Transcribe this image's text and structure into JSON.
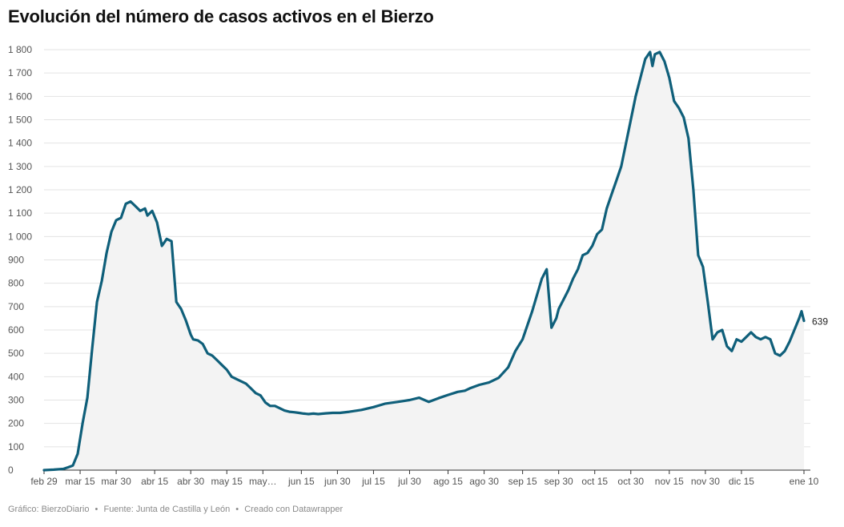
{
  "title": "Evolución del número de casos activos en el Bierzo",
  "footer": {
    "chart_credit": "Gráfico: BierzoDiario",
    "source": "Fuente: Junta de Castilla y León",
    "tool": "Creado con Datawrapper",
    "separator": "•"
  },
  "colors": {
    "line": "#0f5f7a",
    "area": "#f3f3f3",
    "grid": "#e3e3e3",
    "axis": "#333333",
    "tick_text": "#555555"
  },
  "chart_data": {
    "type": "area",
    "title": "Evolución del número de casos activos en el Bierzo",
    "xlabel": "",
    "ylabel": "",
    "ylim": [
      0,
      1800
    ],
    "grid": true,
    "y_ticks": [
      {
        "value": 0,
        "label": "0"
      },
      {
        "value": 100,
        "label": "100"
      },
      {
        "value": 200,
        "label": "200"
      },
      {
        "value": 300,
        "label": "300"
      },
      {
        "value": 400,
        "label": "400"
      },
      {
        "value": 500,
        "label": "500"
      },
      {
        "value": 600,
        "label": "600"
      },
      {
        "value": 700,
        "label": "700"
      },
      {
        "value": 800,
        "label": "800"
      },
      {
        "value": 900,
        "label": "900"
      },
      {
        "value": 1000,
        "label": "1 000"
      },
      {
        "value": 1100,
        "label": "1 100"
      },
      {
        "value": 1200,
        "label": "1 200"
      },
      {
        "value": 1300,
        "label": "1 300"
      },
      {
        "value": 1400,
        "label": "1 400"
      },
      {
        "value": 1500,
        "label": "1 500"
      },
      {
        "value": 1600,
        "label": "1 600"
      },
      {
        "value": 1700,
        "label": "1 700"
      },
      {
        "value": 1800,
        "label": "1 800"
      }
    ],
    "x_ticks": [
      {
        "date": "2020-02-29",
        "label": "feb 29"
      },
      {
        "date": "2020-03-15",
        "label": "mar 15"
      },
      {
        "date": "2020-03-30",
        "label": "mar 30"
      },
      {
        "date": "2020-04-15",
        "label": "abr 15"
      },
      {
        "date": "2020-04-30",
        "label": "abr 30"
      },
      {
        "date": "2020-05-15",
        "label": "may 15"
      },
      {
        "date": "2020-05-30",
        "label": "may…"
      },
      {
        "date": "2020-06-15",
        "label": "jun 15"
      },
      {
        "date": "2020-06-30",
        "label": "jun 30"
      },
      {
        "date": "2020-07-15",
        "label": "jul 15"
      },
      {
        "date": "2020-07-30",
        "label": "jul 30"
      },
      {
        "date": "2020-08-15",
        "label": "ago 15"
      },
      {
        "date": "2020-08-30",
        "label": "ago 30"
      },
      {
        "date": "2020-09-15",
        "label": "sep 15"
      },
      {
        "date": "2020-09-30",
        "label": "sep 30"
      },
      {
        "date": "2020-10-15",
        "label": "oct 15"
      },
      {
        "date": "2020-10-30",
        "label": "oct 30"
      },
      {
        "date": "2020-11-15",
        "label": "nov 15"
      },
      {
        "date": "2020-11-30",
        "label": "nov 30"
      },
      {
        "date": "2020-12-15",
        "label": "dic 15"
      },
      {
        "date": "2021-01-10",
        "label": "ene 10"
      }
    ],
    "end_label": "639",
    "series": [
      {
        "x": [
          "2020-02-29",
          "2020-03-04",
          "2020-03-08",
          "2020-03-10",
          "2020-03-12",
          "2020-03-14",
          "2020-03-16",
          "2020-03-18",
          "2020-03-20",
          "2020-03-22",
          "2020-03-24",
          "2020-03-26",
          "2020-03-28",
          "2020-03-30",
          "2020-04-01",
          "2020-04-03",
          "2020-04-05",
          "2020-04-07",
          "2020-04-09",
          "2020-04-11",
          "2020-04-12",
          "2020-04-14",
          "2020-04-16",
          "2020-04-18",
          "2020-04-20",
          "2020-04-22",
          "2020-04-24",
          "2020-04-26",
          "2020-04-28",
          "2020-04-30",
          "2020-05-01",
          "2020-05-03",
          "2020-05-05",
          "2020-05-07",
          "2020-05-09",
          "2020-05-11",
          "2020-05-13",
          "2020-05-15",
          "2020-05-17",
          "2020-05-19",
          "2020-05-21",
          "2020-05-23",
          "2020-05-25",
          "2020-05-27",
          "2020-05-29",
          "2020-05-31",
          "2020-06-02",
          "2020-06-04",
          "2020-06-06",
          "2020-06-08",
          "2020-06-10",
          "2020-06-12",
          "2020-06-14",
          "2020-06-16",
          "2020-06-18",
          "2020-06-20",
          "2020-06-22",
          "2020-06-25",
          "2020-06-28",
          "2020-07-01",
          "2020-07-05",
          "2020-07-10",
          "2020-07-15",
          "2020-07-20",
          "2020-07-25",
          "2020-07-30",
          "2020-08-03",
          "2020-08-07",
          "2020-08-11",
          "2020-08-15",
          "2020-08-19",
          "2020-08-22",
          "2020-08-24",
          "2020-08-28",
          "2020-09-01",
          "2020-09-05",
          "2020-09-09",
          "2020-09-12",
          "2020-09-15",
          "2020-09-17",
          "2020-09-19",
          "2020-09-21",
          "2020-09-23",
          "2020-09-25",
          "2020-09-27",
          "2020-09-29",
          "2020-09-30",
          "2020-10-02",
          "2020-10-04",
          "2020-10-06",
          "2020-10-08",
          "2020-10-10",
          "2020-10-12",
          "2020-10-14",
          "2020-10-16",
          "2020-10-18",
          "2020-10-20",
          "2020-10-22",
          "2020-10-24",
          "2020-10-26",
          "2020-10-28",
          "2020-10-30",
          "2020-11-01",
          "2020-11-03",
          "2020-11-05",
          "2020-11-07",
          "2020-11-08",
          "2020-11-09",
          "2020-11-11",
          "2020-11-13",
          "2020-11-15",
          "2020-11-17",
          "2020-11-19",
          "2020-11-21",
          "2020-11-23",
          "2020-11-25",
          "2020-11-27",
          "2020-11-29",
          "2020-12-01",
          "2020-12-03",
          "2020-12-05",
          "2020-12-07",
          "2020-12-09",
          "2020-12-11",
          "2020-12-13",
          "2020-12-15",
          "2020-12-17",
          "2020-12-19",
          "2020-12-21",
          "2020-12-23",
          "2020-12-25",
          "2020-12-27",
          "2020-12-29",
          "2020-12-31",
          "2021-01-02",
          "2021-01-04",
          "2021-01-06",
          "2021-01-08",
          "2021-01-09",
          "2021-01-10"
        ],
        "y": [
          0,
          2,
          5,
          12,
          20,
          70,
          200,
          310,
          520,
          720,
          810,
          930,
          1020,
          1070,
          1080,
          1140,
          1150,
          1130,
          1110,
          1120,
          1090,
          1110,
          1060,
          960,
          990,
          980,
          720,
          690,
          640,
          580,
          560,
          555,
          540,
          500,
          490,
          470,
          450,
          430,
          400,
          390,
          380,
          370,
          350,
          330,
          320,
          290,
          275,
          275,
          265,
          255,
          250,
          248,
          245,
          242,
          240,
          242,
          240,
          243,
          245,
          245,
          250,
          258,
          270,
          285,
          292,
          300,
          310,
          292,
          308,
          322,
          335,
          340,
          350,
          365,
          375,
          395,
          440,
          510,
          560,
          620,
          680,
          750,
          820,
          860,
          610,
          650,
          690,
          730,
          770,
          820,
          860,
          920,
          930,
          960,
          1010,
          1030,
          1120,
          1180,
          1240,
          1300,
          1400,
          1500,
          1600,
          1680,
          1760,
          1790,
          1730,
          1780,
          1790,
          1750,
          1680,
          1580,
          1550,
          1510,
          1420,
          1200,
          920,
          870,
          720,
          560,
          590,
          600,
          530,
          510,
          560,
          550,
          570,
          590,
          570,
          560,
          570,
          560,
          500,
          490,
          510,
          550,
          600,
          650,
          680,
          639
        ]
      }
    ]
  }
}
